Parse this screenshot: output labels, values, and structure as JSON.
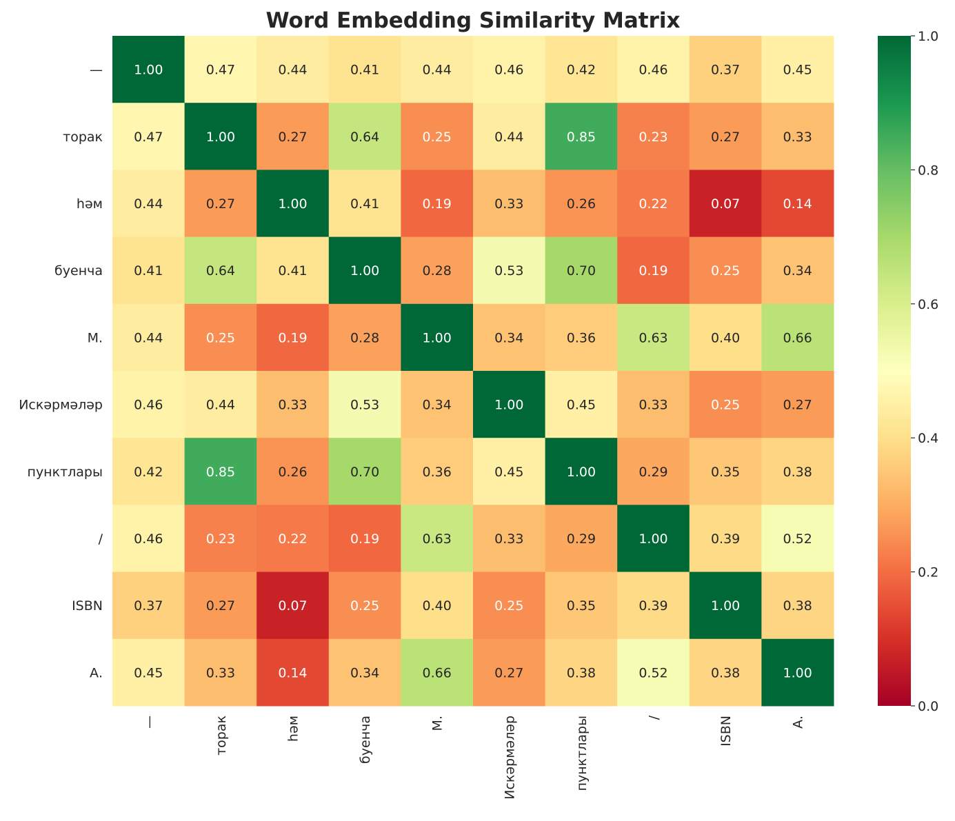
{
  "chart_data": {
    "type": "heatmap",
    "title": "Word Embedding Similarity Matrix",
    "colormap": "RdYlGn",
    "vmin": 0.0,
    "vmax": 1.0,
    "x_labels": [
      "—",
      "торак",
      "һәм",
      "буенча",
      "М.",
      "Искәрмәләр",
      "пунктлары",
      "/",
      "ISBN",
      "А."
    ],
    "y_labels": [
      "—",
      "торак",
      "һәм",
      "буенча",
      "М.",
      "Искәрмәләр",
      "пунктлары",
      "/",
      "ISBN",
      "А."
    ],
    "values": [
      [
        1.0,
        0.47,
        0.44,
        0.41,
        0.44,
        0.46,
        0.42,
        0.46,
        0.37,
        0.45
      ],
      [
        0.47,
        1.0,
        0.27,
        0.64,
        0.25,
        0.44,
        0.85,
        0.23,
        0.27,
        0.33
      ],
      [
        0.44,
        0.27,
        1.0,
        0.41,
        0.19,
        0.33,
        0.26,
        0.22,
        0.07,
        0.14
      ],
      [
        0.41,
        0.64,
        0.41,
        1.0,
        0.28,
        0.53,
        0.7,
        0.19,
        0.25,
        0.34
      ],
      [
        0.44,
        0.25,
        0.19,
        0.28,
        1.0,
        0.34,
        0.36,
        0.63,
        0.4,
        0.66
      ],
      [
        0.46,
        0.44,
        0.33,
        0.53,
        0.34,
        1.0,
        0.45,
        0.33,
        0.25,
        0.27
      ],
      [
        0.42,
        0.85,
        0.26,
        0.7,
        0.36,
        0.45,
        1.0,
        0.29,
        0.35,
        0.38
      ],
      [
        0.46,
        0.23,
        0.22,
        0.19,
        0.63,
        0.33,
        0.29,
        1.0,
        0.39,
        0.52
      ],
      [
        0.37,
        0.27,
        0.07,
        0.25,
        0.4,
        0.25,
        0.35,
        0.39,
        1.0,
        0.38
      ],
      [
        0.45,
        0.33,
        0.14,
        0.34,
        0.66,
        0.27,
        0.38,
        0.52,
        0.38,
        1.0
      ]
    ],
    "colorbar_ticks": [
      "0.0",
      "0.2",
      "0.4",
      "0.6",
      "0.8",
      "1.0"
    ],
    "annotation_format": "0.00"
  }
}
